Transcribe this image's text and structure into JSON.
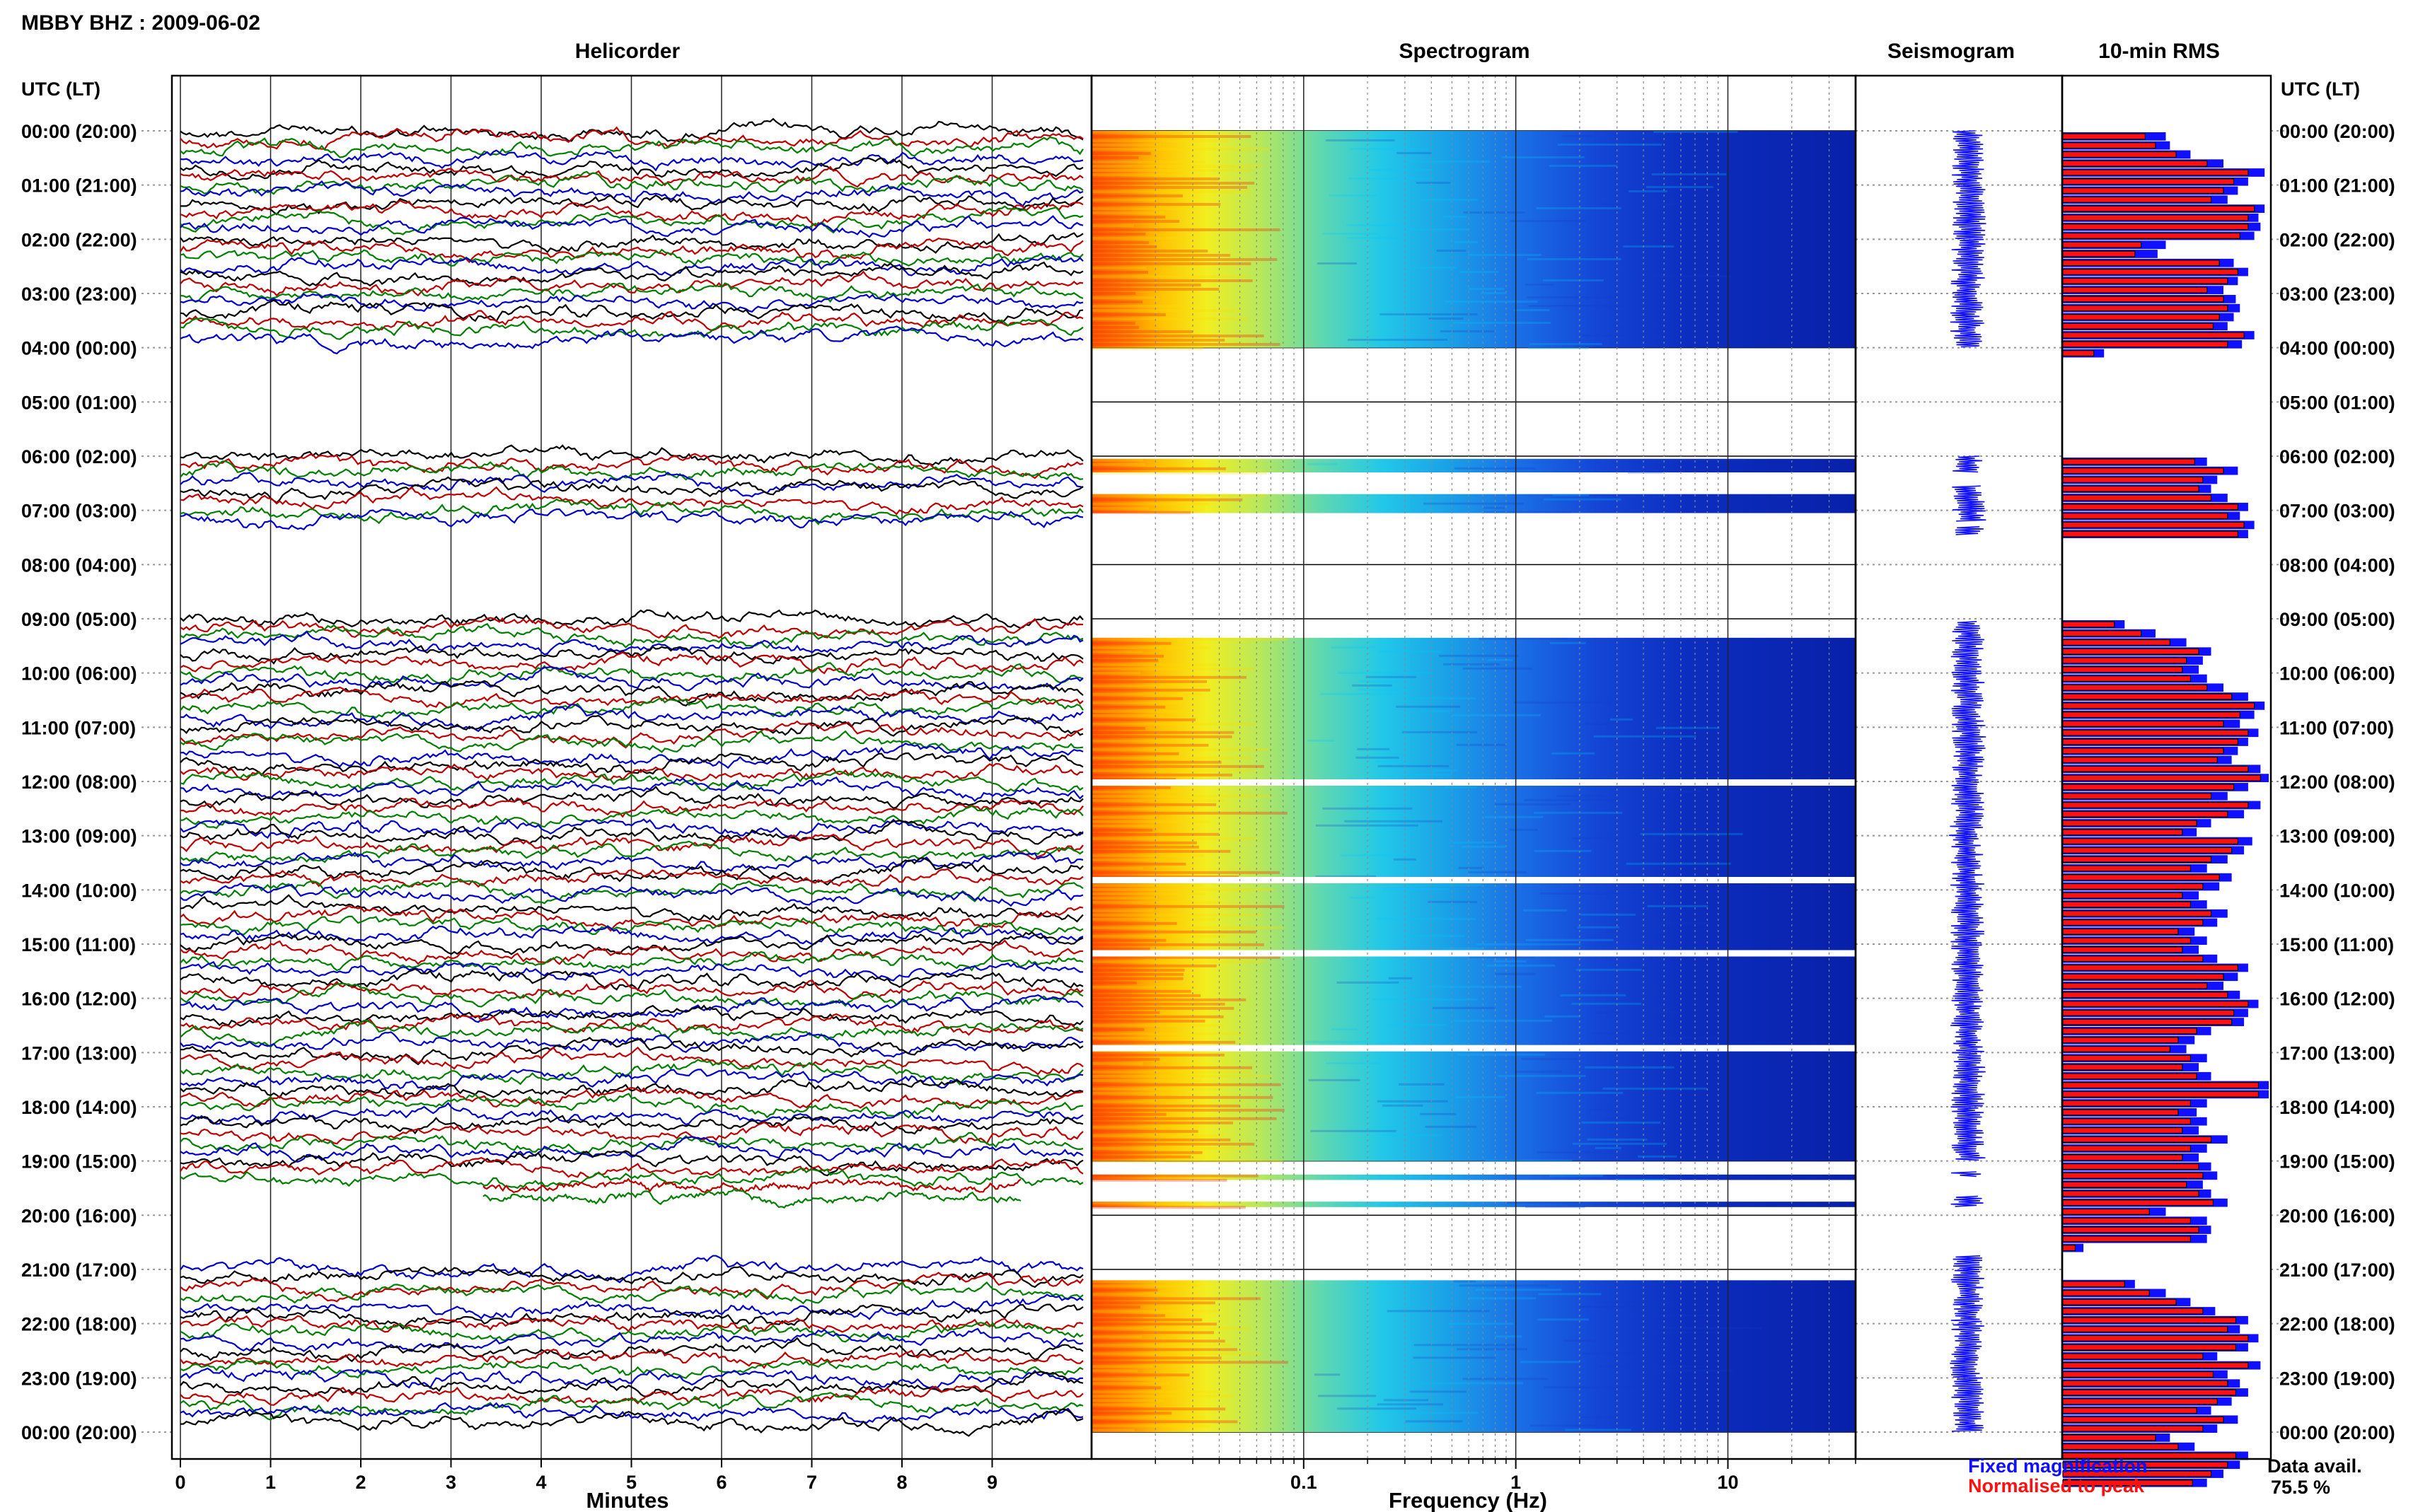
{
  "page_title": "MBBY BHZ : 2009-06-02",
  "time_axis_label": "UTC (LT)",
  "time_labels": [
    "00:00 (20:00)",
    "01:00 (21:00)",
    "02:00 (22:00)",
    "03:00 (23:00)",
    "04:00 (00:00)",
    "05:00 (01:00)",
    "06:00 (02:00)",
    "07:00 (03:00)",
    "08:00 (04:00)",
    "09:00 (05:00)",
    "10:00 (06:00)",
    "11:00 (07:00)",
    "12:00 (08:00)",
    "13:00 (09:00)",
    "14:00 (10:00)",
    "15:00 (11:00)",
    "16:00 (12:00)",
    "17:00 (13:00)",
    "18:00 (14:00)",
    "19:00 (15:00)",
    "20:00 (16:00)",
    "21:00 (17:00)",
    "22:00 (18:00)",
    "23:00 (19:00)",
    "00:00 (20:00)"
  ],
  "legend": {
    "fixed": "Fixed magnification",
    "normalised": "Normalised to peak"
  },
  "data_availability": {
    "label": "Data avail.",
    "value": "75.5 %"
  },
  "colors": {
    "fixed": "#1010ff",
    "normalised": "#ff1010",
    "trace_palette": [
      "#000000",
      "#c00000",
      "#008000",
      "#0000cc"
    ]
  },
  "chart_data": [
    {
      "type": "line",
      "title": "Helicorder",
      "xlabel": "Minutes",
      "xticks": [
        "0",
        "1",
        "2",
        "3",
        "4",
        "5",
        "6",
        "7",
        "8",
        "9"
      ],
      "xlim": [
        0,
        10
      ],
      "ylim_hours": [
        0,
        24
      ],
      "data_segments_utc_hours": [
        [
          0,
          4
        ],
        [
          6,
          7.33
        ],
        [
          9,
          19.5
        ],
        [
          21,
          24
        ]
      ],
      "partial_lines_utc_hours": [
        19.5,
        19.67
      ],
      "trace_interval_min": 10
    },
    {
      "type": "heatmap",
      "title": "Spectrogram",
      "xlabel": "Frequency (Hz)",
      "xscale": "log",
      "xlim": [
        0.01,
        40
      ],
      "xticks": [
        "0.1",
        "1",
        "10"
      ],
      "ylim_hours": [
        0,
        24
      ],
      "data_segments_utc_hours": [
        [
          0,
          4
        ],
        [
          6.05,
          6.3
        ],
        [
          6.7,
          7.05
        ],
        [
          9.35,
          19.0
        ],
        [
          19.25,
          19.35
        ],
        [
          19.75,
          19.85
        ],
        [
          21.2,
          24
        ]
      ],
      "gaps_utc_hours": [
        12.0,
        13.8,
        15.15,
        16.9
      ]
    },
    {
      "type": "line",
      "title": "Seismogram",
      "ylim_hours": [
        0,
        24
      ],
      "data_segments_utc_hours": [
        [
          0,
          4
        ],
        [
          6.0,
          6.3
        ],
        [
          6.55,
          7.2
        ],
        [
          7.3,
          7.45
        ],
        [
          9.05,
          19.0
        ],
        [
          19.2,
          19.3
        ],
        [
          19.65,
          19.85
        ],
        [
          20.75,
          24
        ]
      ]
    },
    {
      "type": "bar",
      "title": "10-min RMS",
      "orientation": "horizontal",
      "interval_min": 10,
      "start_hour": 0,
      "series": [
        {
          "name": "Fixed magnification",
          "values": [
            0.5,
            0.52,
            0.62,
            0.78,
            0.98,
            0.9,
            0.85,
            0.8,
            0.98,
            0.95,
            0.96,
            0.93,
            0.5,
            0.46,
            0.83,
            0.9,
            0.85,
            0.78,
            0.84,
            0.86,
            0.83,
            0.8,
            0.93,
            0.87,
            0.2,
            0,
            0,
            0,
            0,
            0,
            0,
            0,
            0,
            0,
            0,
            0,
            0.7,
            0.85,
            0.75,
            0.72,
            0.8,
            0.9,
            0.86,
            0.93,
            0.9,
            0,
            0,
            0,
            0,
            0,
            0,
            0,
            0,
            0,
            0.3,
            0.45,
            0.6,
            0.72,
            0.68,
            0.66,
            0.7,
            0.78,
            0.9,
            0.98,
            0.93,
            0.86,
            0.95,
            0.9,
            0.85,
            0.82,
            0.96,
            1.0,
            0.9,
            0.8,
            0.96,
            0.88,
            0.72,
            0.65,
            0.92,
            0.88,
            0.8,
            0.7,
            0.82,
            0.76,
            0.66,
            0.7,
            0.8,
            0.75,
            0.64,
            0.7,
            0.66,
            0.75,
            0.9,
            0.85,
            0.78,
            0.86,
            0.95,
            0.9,
            0.88,
            0.72,
            0.64,
            0.6,
            0.7,
            0.66,
            0.72,
            1.0,
            1.0,
            0.7,
            0.65,
            0.7,
            0.66,
            0.8,
            0.7,
            0.66,
            0.72,
            0.75,
            0.68,
            0.72,
            0.8,
            0.5,
            0.7,
            0.72,
            0.7,
            0.1,
            0,
            0,
            0,
            0.35,
            0.5,
            0.62,
            0.74,
            0.9,
            0.86,
            0.95,
            0.9,
            0.75,
            0.96,
            0.8,
            0.86,
            0.9,
            0.82,
            0.72,
            0.85,
            0.75,
            0.52,
            0.64,
            0.9,
            0.86,
            0.78,
            0.7
          ]
        },
        {
          "name": "Normalised to peak",
          "values": [
            0.4,
            0.45,
            0.55,
            0.7,
            0.9,
            0.83,
            0.78,
            0.72,
            0.93,
            0.9,
            0.9,
            0.86,
            0.38,
            0.35,
            0.76,
            0.85,
            0.8,
            0.7,
            0.78,
            0.8,
            0.76,
            0.73,
            0.88,
            0.8,
            0.15,
            0,
            0,
            0,
            0,
            0,
            0,
            0,
            0,
            0,
            0,
            0,
            0.64,
            0.78,
            0.68,
            0.66,
            0.72,
            0.85,
            0.8,
            0.88,
            0.85,
            0,
            0,
            0,
            0,
            0,
            0,
            0,
            0,
            0,
            0.25,
            0.38,
            0.52,
            0.66,
            0.6,
            0.58,
            0.62,
            0.7,
            0.82,
            0.93,
            0.86,
            0.78,
            0.9,
            0.85,
            0.78,
            0.75,
            0.9,
            0.96,
            0.83,
            0.72,
            0.9,
            0.8,
            0.65,
            0.58,
            0.85,
            0.82,
            0.72,
            0.62,
            0.76,
            0.68,
            0.58,
            0.62,
            0.72,
            0.68,
            0.56,
            0.62,
            0.58,
            0.68,
            0.85,
            0.78,
            0.7,
            0.8,
            0.9,
            0.83,
            0.82,
            0.65,
            0.56,
            0.52,
            0.62,
            0.58,
            0.65,
            0.95,
            0.95,
            0.62,
            0.56,
            0.62,
            0.58,
            0.72,
            0.62,
            0.58,
            0.66,
            0.68,
            0.6,
            0.66,
            0.73,
            0.42,
            0.62,
            0.66,
            0.62,
            0.06,
            0,
            0,
            0,
            0.3,
            0.42,
            0.55,
            0.68,
            0.84,
            0.8,
            0.9,
            0.84,
            0.68,
            0.9,
            0.73,
            0.8,
            0.84,
            0.75,
            0.65,
            0.78,
            0.68,
            0.45,
            0.56,
            0.84,
            0.8,
            0.72,
            0.63
          ]
        }
      ]
    }
  ]
}
